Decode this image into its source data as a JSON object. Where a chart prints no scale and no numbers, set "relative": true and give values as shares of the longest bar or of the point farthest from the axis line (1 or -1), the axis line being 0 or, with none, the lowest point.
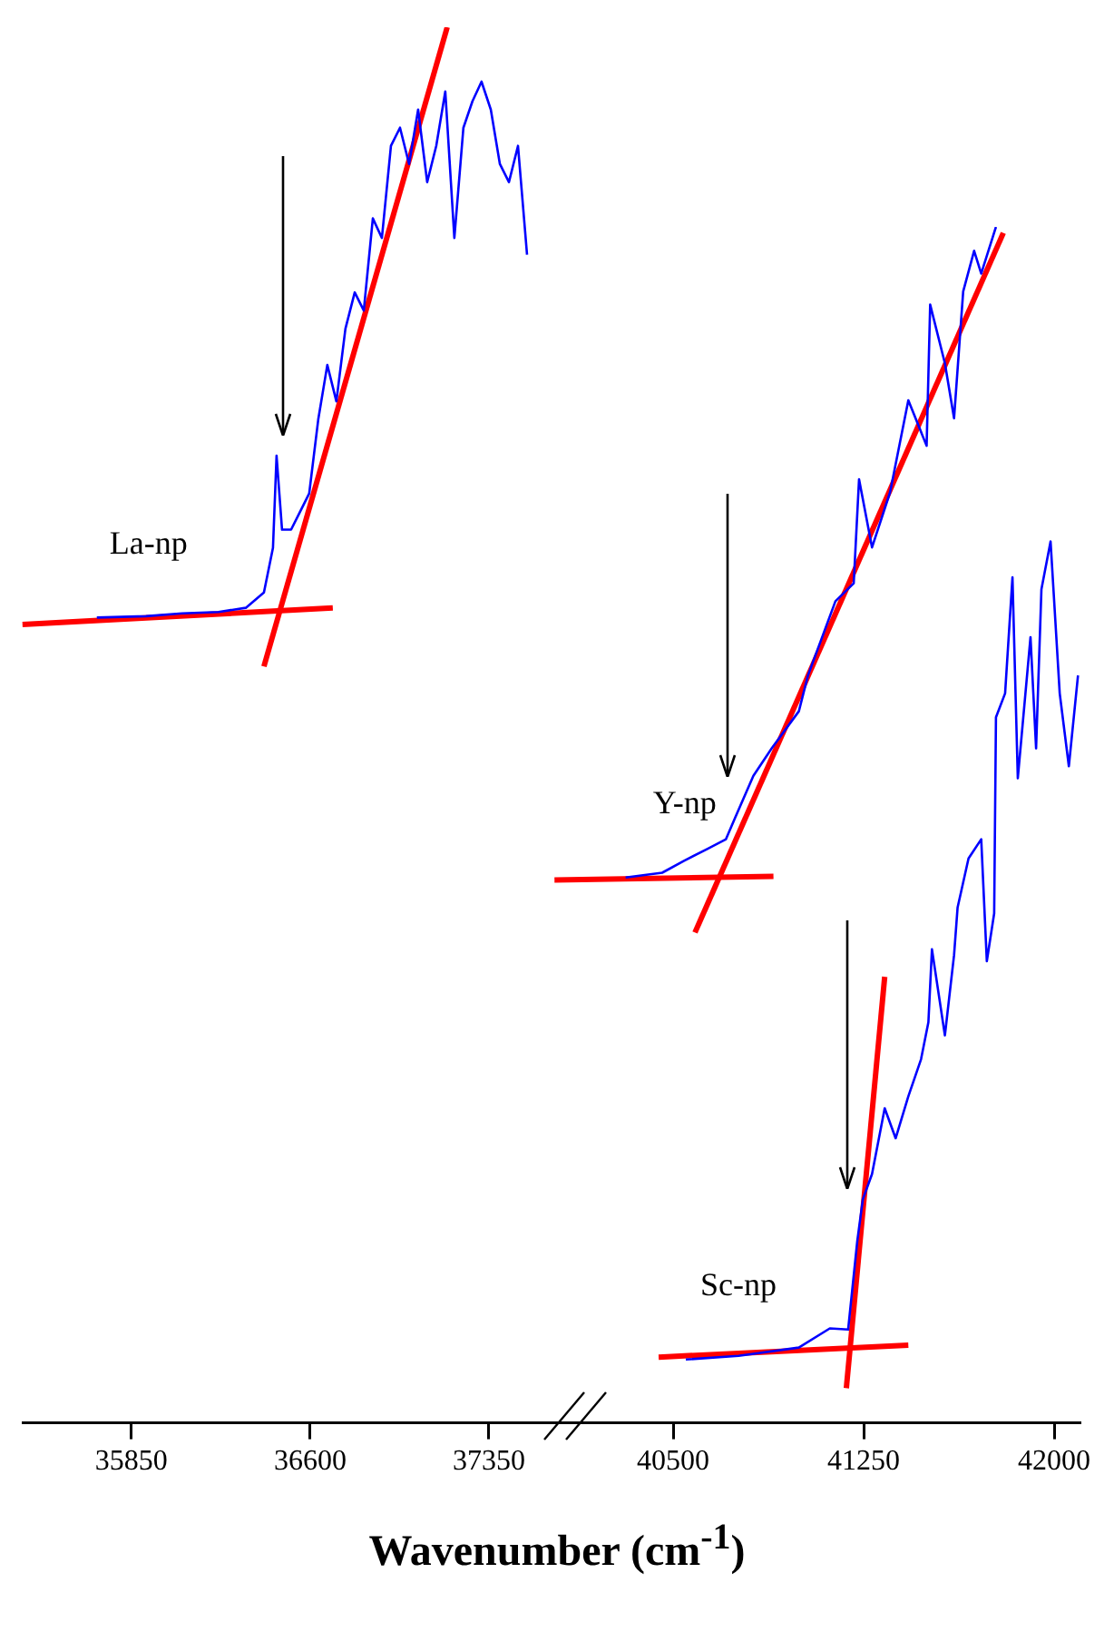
{
  "chart_data": [
    {
      "type": "line",
      "xlabel": "Wavenumber (cm$^{-1}$)",
      "xlim": [
        35390,
        37590
      ],
      "xticks": [
        35850,
        36600,
        37350
      ],
      "relative": true,
      "tick_labels": "x",
      "series": [
        {
          "name": "La-np",
          "color": "#0000ff",
          "x": [
            35705,
            35911,
            36063,
            36215,
            36330,
            36406,
            36444,
            36459,
            36482,
            36520,
            36558,
            36596,
            36634,
            36672,
            36710,
            36748,
            36787,
            36825,
            36863,
            36901,
            36939,
            36977,
            37015,
            37053,
            37091,
            37129,
            37167,
            37205,
            37243,
            37281,
            37319,
            37358,
            37396,
            37434,
            37472,
            37510
          ],
          "values": [
            0.577,
            0.578,
            0.58,
            0.581,
            0.584,
            0.595,
            0.627,
            0.693,
            0.64,
            0.64,
            0.653,
            0.666,
            0.719,
            0.758,
            0.732,
            0.784,
            0.81,
            0.797,
            0.863,
            0.849,
            0.915,
            0.928,
            0.902,
            0.941,
            0.889,
            0.915,
            0.954,
            0.849,
            0.928,
            0.947,
            0.961,
            0.941,
            0.902,
            0.889,
            0.915,
            0.837
          ]
        },
        {
          "type": "line",
          "color": "#ff0000",
          "x": [
            35393,
            36695
          ],
          "values": [
            0.572,
            0.584
          ]
        },
        {
          "type": "line",
          "color": "#ff0000",
          "x": [
            36406,
            37175
          ],
          "values": [
            0.542,
            1
          ]
        }
      ]
    },
    {
      "type": "line",
      "xlim": [
        40000,
        42100
      ],
      "xticks": [
        40500,
        41250,
        42000
      ],
      "relative": true,
      "tick_labels": "x",
      "series": [
        {
          "name": "Y-np",
          "color": "#0000ff",
          "x": [
            40313,
            40457,
            40543,
            40636,
            40708,
            40744,
            40816,
            40888,
            40995,
            41031,
            41139,
            41211,
            41232,
            41283,
            41354,
            41426,
            41498,
            41512,
            41570,
            41606,
            41642,
            41685,
            41713,
            41771
          ],
          "values": [
            0.456,
            0.46,
            0.47,
            0.48,
            0.488,
            0.506,
            0.541,
            0.564,
            0.595,
            0.625,
            0.687,
            0.702,
            0.789,
            0.732,
            0.778,
            0.855,
            0.817,
            0.935,
            0.886,
            0.84,
            0.946,
            0.98,
            0.961,
            1
          ]
        },
        {
          "type": "line",
          "color": "#ff0000",
          "x": [
            40033,
            40895
          ],
          "values": [
            0.454,
            0.457
          ]
        },
        {
          "type": "line",
          "color": "#ff0000",
          "x": [
            40586,
            41800
          ],
          "values": [
            0.41,
            0.995
          ]
        },
        {
          "name": "Sc-np",
          "color": "#0000ff",
          "x": [
            40550,
            40758,
            40995,
            41117,
            41189,
            41225,
            41247,
            41283,
            41333,
            41376,
            41426,
            41476,
            41505,
            41519,
            41570,
            41606,
            41620,
            41663,
            41713,
            41735,
            41764,
            41771,
            41807,
            41836,
            41857,
            41907,
            41929,
            41950,
            41986,
            42022,
            42058,
            42094
          ],
          "values": [
            0.053,
            0.056,
            0.063,
            0.079,
            0.078,
            0.152,
            0.187,
            0.208,
            0.263,
            0.238,
            0.273,
            0.304,
            0.335,
            0.396,
            0.324,
            0.391,
            0.431,
            0.472,
            0.488,
            0.386,
            0.426,
            0.59,
            0.61,
            0.707,
            0.539,
            0.657,
            0.564,
            0.697,
            0.737,
            0.61,
            0.549,
            0.625
          ]
        },
        {
          "type": "line",
          "color": "#ff0000",
          "x": [
            40443,
            41426
          ],
          "values": [
            0.055,
            0.065
          ]
        },
        {
          "type": "line",
          "color": "#ff0000",
          "x": [
            41182,
            41333
          ],
          "values": [
            0.029,
            0.373
          ]
        }
      ]
    }
  ]
}
